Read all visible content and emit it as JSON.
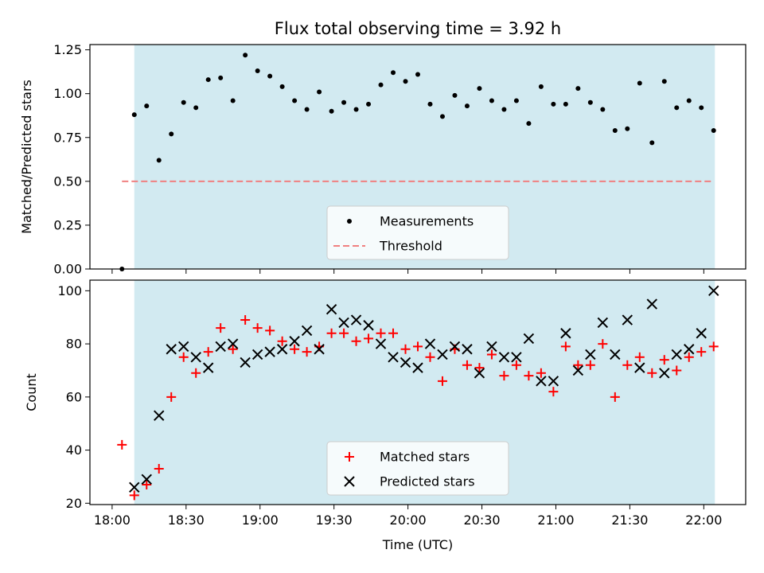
{
  "chart_data": {
    "title": "Flux total observing time = 3.92 h",
    "xlabel": "Time (UTC)",
    "x_tick_labels": [
      "18:00",
      "18:30",
      "19:00",
      "19:30",
      "20:00",
      "20:30",
      "21:00",
      "21:30",
      "22:00"
    ],
    "x_tick_minutes": [
      0,
      30,
      60,
      90,
      120,
      150,
      180,
      210,
      240
    ],
    "xlim_minutes": [
      -9,
      257
    ],
    "shaded_span_minutes": [
      9,
      244.5
    ],
    "colors": {
      "shade": "#add8e6",
      "measurements": "#000000",
      "threshold": "#f08080",
      "matched": "#ff0000",
      "predicted": "#000000"
    },
    "panels": [
      {
        "type": "scatter",
        "ylabel": "Matched/Predicted stars",
        "ylim": [
          0,
          1.28
        ],
        "y_ticks": [
          0.0,
          0.25,
          0.5,
          0.75,
          1.0,
          1.25
        ],
        "y_tick_labels": [
          "0.00",
          "0.25",
          "0.50",
          "0.75",
          "1.00",
          "1.25"
        ],
        "legend_placement": "lower-center",
        "series": [
          {
            "name": "Measurements",
            "marker": "dot",
            "x_minutes": [
              4,
              9,
              14,
              19,
              24,
              29,
              34,
              39,
              44,
              49,
              54,
              59,
              64,
              69,
              74,
              79,
              84,
              89,
              94,
              99,
              104,
              109,
              114,
              119,
              124,
              129,
              134,
              139,
              144,
              149,
              154,
              159,
              164,
              169,
              174,
              179,
              184,
              189,
              194,
              199,
              204,
              209,
              214,
              219,
              224,
              229,
              234,
              239,
              244
            ],
            "values": [
              0.0,
              0.88,
              0.93,
              0.62,
              0.77,
              0.95,
              0.92,
              1.08,
              1.09,
              0.96,
              1.22,
              1.13,
              1.1,
              1.04,
              0.96,
              0.91,
              1.01,
              0.9,
              0.95,
              0.91,
              0.94,
              1.05,
              1.12,
              1.07,
              1.11,
              0.94,
              0.87,
              0.99,
              0.93,
              1.03,
              0.96,
              0.91,
              0.96,
              0.83,
              1.04,
              0.94,
              0.94,
              1.03,
              0.95,
              0.91,
              0.79,
              0.8,
              1.06,
              0.72,
              1.07,
              0.92,
              0.96,
              0.92,
              0.79
            ]
          },
          {
            "name": "Threshold",
            "marker": "dashed-line",
            "x_minutes": [
              4,
              244
            ],
            "values": [
              0.5,
              0.5
            ]
          }
        ]
      },
      {
        "type": "scatter",
        "ylabel": "Count",
        "ylim": [
          19.5,
          104
        ],
        "y_ticks": [
          20,
          40,
          60,
          80,
          100
        ],
        "y_tick_labels": [
          "20",
          "40",
          "60",
          "80",
          "100"
        ],
        "legend_placement": "lower-center",
        "series": [
          {
            "name": "Matched stars",
            "marker": "plus",
            "x_minutes": [
              4,
              9,
              14,
              19,
              24,
              29,
              34,
              39,
              44,
              49,
              54,
              59,
              64,
              69,
              74,
              79,
              84,
              89,
              94,
              99,
              104,
              109,
              114,
              119,
              124,
              129,
              134,
              139,
              144,
              149,
              154,
              159,
              164,
              169,
              174,
              179,
              184,
              189,
              194,
              199,
              204,
              209,
              214,
              219,
              224,
              229,
              234,
              239,
              244
            ],
            "values": [
              42,
              23,
              27,
              33,
              60,
              75,
              69,
              77,
              86,
              78,
              89,
              86,
              85,
              81,
              78,
              77,
              79,
              84,
              84,
              81,
              82,
              84,
              84,
              78,
              79,
              75,
              66,
              78,
              72,
              71,
              76,
              68,
              72,
              68,
              69,
              62,
              79,
              72,
              72,
              80,
              60,
              72,
              75,
              69,
              74,
              70,
              75,
              77,
              79
            ]
          },
          {
            "name": "Predicted stars",
            "marker": "x",
            "x_minutes": [
              9,
              14,
              19,
              24,
              29,
              34,
              39,
              44,
              49,
              54,
              59,
              64,
              69,
              74,
              79,
              84,
              89,
              94,
              99,
              104,
              109,
              114,
              119,
              124,
              129,
              134,
              139,
              144,
              149,
              154,
              159,
              164,
              169,
              174,
              179,
              184,
              189,
              194,
              199,
              204,
              209,
              214,
              219,
              224,
              229,
              234,
              239,
              244
            ],
            "values": [
              26,
              29,
              53,
              78,
              79,
              75,
              71,
              79,
              80,
              73,
              76,
              77,
              78,
              81,
              85,
              78,
              93,
              88,
              89,
              87,
              80,
              75,
              73,
              71,
              80,
              76,
              79,
              78,
              69,
              79,
              75,
              75,
              82,
              66,
              66,
              84,
              70,
              76,
              88,
              76,
              89,
              71,
              95,
              69,
              76,
              78,
              84,
              100
            ]
          }
        ]
      }
    ]
  }
}
